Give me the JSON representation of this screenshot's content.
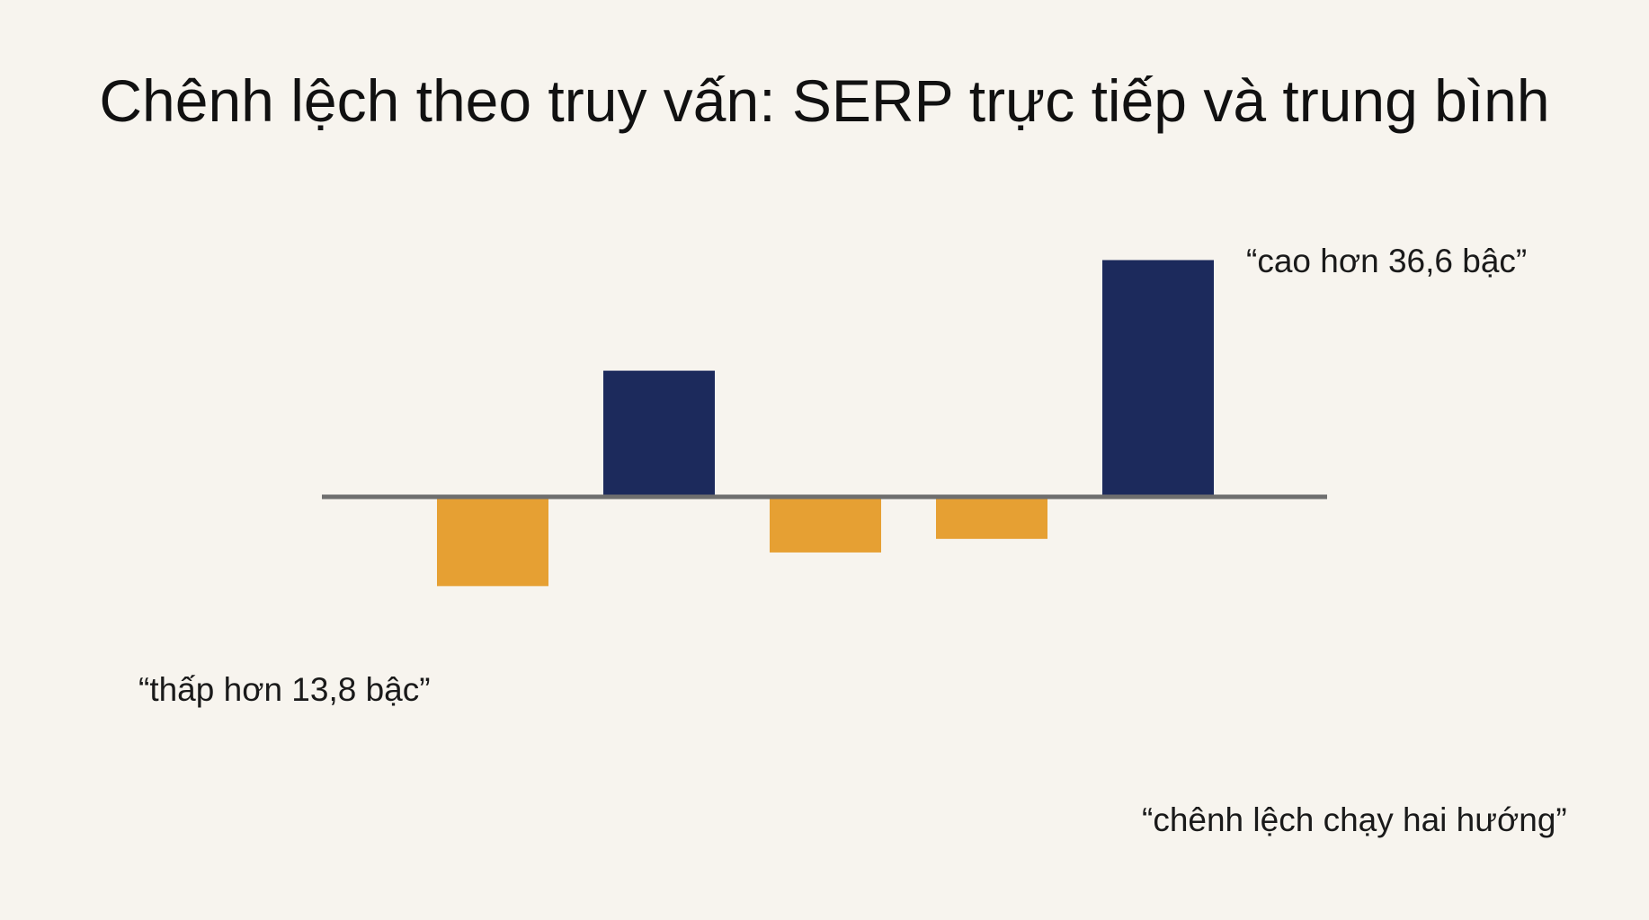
{
  "title": "Chênh lệch theo truy vấn: SERP trực tiếp và trung bình",
  "annotations": {
    "high": "“cao hơn 36,6 bậc”",
    "low": "“thấp hơn 13,8 bậc”",
    "both": "“chênh lệch chạy hai hướng”"
  },
  "colors": {
    "positive": "#1C2A5C",
    "negative": "#E6A033",
    "zero_line": "#6E6E6E",
    "background": "#F7F4EE"
  },
  "chart_data": {
    "type": "bar",
    "title": "Chênh lệch theo truy vấn: SERP trực tiếp và trung bình",
    "xlabel": "",
    "ylabel": "",
    "categories": [
      "",
      "",
      "",
      "",
      ""
    ],
    "values": [
      -13.8,
      19.5,
      -8.6,
      -6.5,
      36.6
    ],
    "ylim": [
      -20,
      40
    ],
    "grid": false,
    "legend": "none"
  }
}
